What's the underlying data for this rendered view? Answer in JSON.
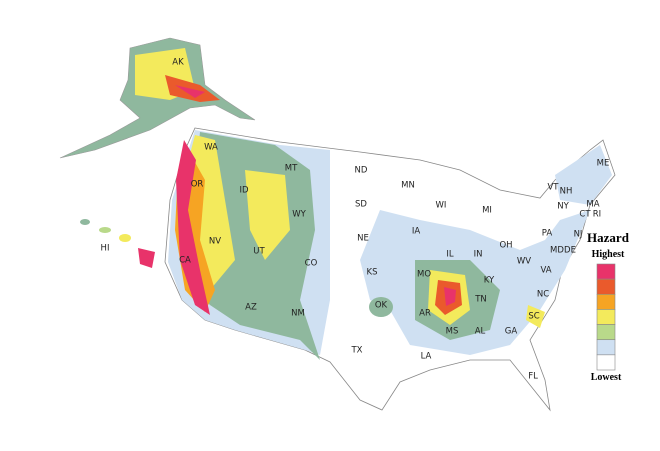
{
  "map": {
    "states": [
      "AK",
      "HI",
      "WA",
      "OR",
      "CA",
      "ID",
      "NV",
      "MT",
      "WY",
      "UT",
      "AZ",
      "CO",
      "NM",
      "ND",
      "SD",
      "NE",
      "KS",
      "OK",
      "TX",
      "MN",
      "IA",
      "MO",
      "AR",
      "LA",
      "WI",
      "IL",
      "MS",
      "MI",
      "IN",
      "KY",
      "TN",
      "AL",
      "GA",
      "FL",
      "OH",
      "WV",
      "VA",
      "NC",
      "SC",
      "PA",
      "NY",
      "MD",
      "DE",
      "NJ",
      "CT",
      "RI",
      "MA",
      "VT",
      "NH",
      "ME"
    ],
    "legend": {
      "title": "Hazard",
      "high": "Highest",
      "low": "Lowest",
      "colors": [
        "#e8336a",
        "#ea5a2c",
        "#f6a423",
        "#f3ea5c",
        "#b9d98a",
        "#cfe0f2",
        "#ffffff"
      ]
    }
  }
}
